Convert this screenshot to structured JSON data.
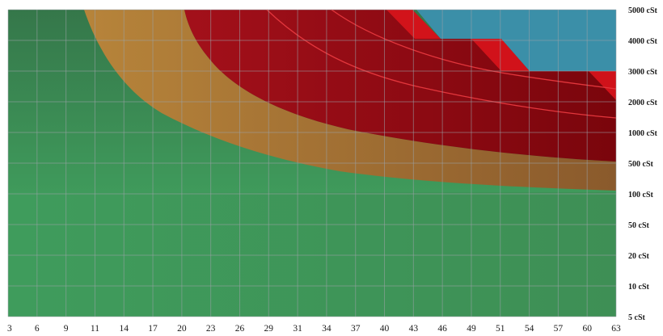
{
  "chart_data": {
    "type": "area",
    "title": "",
    "xlabel": "",
    "ylabel": "",
    "x_ticks": [
      "3",
      "6",
      "9",
      "11",
      "14",
      "17",
      "20",
      "23",
      "26",
      "29",
      "31",
      "34",
      "37",
      "40",
      "43",
      "46",
      "49",
      "51",
      "54",
      "57",
      "60",
      "63"
    ],
    "y_ticks": [
      "5 cSt",
      "10 cSt",
      "20 cSt",
      "50 cSt",
      "100 cSt",
      "500 cSt",
      "1000 cSt",
      "2000 cSt",
      "3000 cSt",
      "4000 cSt",
      "5000 cSt"
    ],
    "grid": true,
    "legend": "none",
    "regions": [
      {
        "color": "#3f9a5b",
        "boundary": "y_ticks 5 cSt - 100 cSt, full width"
      },
      {
        "color": "#3c8a52",
        "upper_boundary": {
          "x": [
            "9",
            "11",
            "14",
            "17",
            "20",
            "23",
            "26",
            "29",
            "31",
            "34",
            "37",
            "40",
            "43",
            "46",
            "49",
            "51",
            "54",
            "57",
            "60",
            "63"
          ],
          "y": [
            "5000 cSt",
            "2000 cSt",
            "1000 cSt",
            "1000 cSt",
            "500 cSt",
            "500 cSt",
            "500 cSt",
            "500 cSt",
            "500 cSt",
            "500 cSt",
            "500 cSt",
            "100 cSt",
            "100 cSt",
            "100 cSt",
            "100 cSt",
            "100 cSt",
            "100 cSt",
            "100 cSt",
            "100 cSt",
            "100 cSt"
          ]
        }
      },
      {
        "color": "#b07a36",
        "upper_boundary": {
          "x": [
            "20",
            "23",
            "26",
            "29",
            "31",
            "34",
            "37",
            "40",
            "43",
            "46",
            "49",
            "51",
            "54",
            "57",
            "60",
            "63"
          ],
          "y": [
            "5000 cSt",
            "3000 cSt",
            "2000 cSt",
            "2000 cSt",
            "1000 cSt",
            "1000 cSt",
            "1000 cSt",
            "1000 cSt",
            "1000 cSt",
            "1000 cSt",
            "1000 cSt",
            "500 cSt",
            "500 cSt",
            "500 cSt",
            "500 cSt",
            "500 cSt"
          ]
        }
      },
      {
        "color": "#8c0a10",
        "upper_boundary": "5000 cSt, stepping down to 4000 cSt at 46 and 3000 cSt at 51"
      },
      {
        "color": "#3b8fa8",
        "region": "upper-right above the red step boundary"
      }
    ],
    "colors": {
      "green_low": "#3f9a5b",
      "green_high": "#3c8a52",
      "orange": "#b07a36",
      "red": "#8c0a10",
      "red_bright": "#e0141c",
      "blue": "#3b8fa8",
      "grid_line": "#9aa2a8"
    }
  }
}
